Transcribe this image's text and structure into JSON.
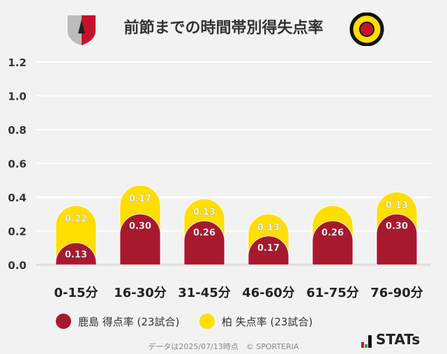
{
  "title": "前節までの時間帯別得失点率",
  "logos": {
    "home": "鹿島アントラーズ crest",
    "away": "KASHIWA REYSOL crest"
  },
  "chart_data": {
    "type": "bar",
    "stacked": true,
    "categories": [
      "0-15分",
      "16-30分",
      "31-45分",
      "46-60分",
      "61-75分",
      "76-90分"
    ],
    "series": [
      {
        "name": "鹿島 得点率 (23試合)",
        "color": "#a8192e",
        "values": [
          0.13,
          0.3,
          0.26,
          0.17,
          0.26,
          0.3
        ],
        "labels": [
          "0.13",
          "0.30",
          "0.26",
          "0.17",
          "0.26",
          "0.30"
        ]
      },
      {
        "name": "柏 失点率 (23試合)",
        "color": "#ffde00",
        "values": [
          0.22,
          0.17,
          0.13,
          0.13,
          0.09,
          0.13
        ],
        "labels": [
          "0.22",
          "0.17",
          "0.13",
          "0.13",
          "",
          "0.13"
        ]
      }
    ],
    "yticks": [
      "0.0",
      "0.2",
      "0.4",
      "0.6",
      "0.8",
      "1.0",
      "1.2"
    ],
    "ylim": [
      0,
      1.2
    ],
    "grid": true,
    "legend": "bottom"
  },
  "footer": "データは2025/07/13時点　© SPORTERIA",
  "brand": "STATs"
}
